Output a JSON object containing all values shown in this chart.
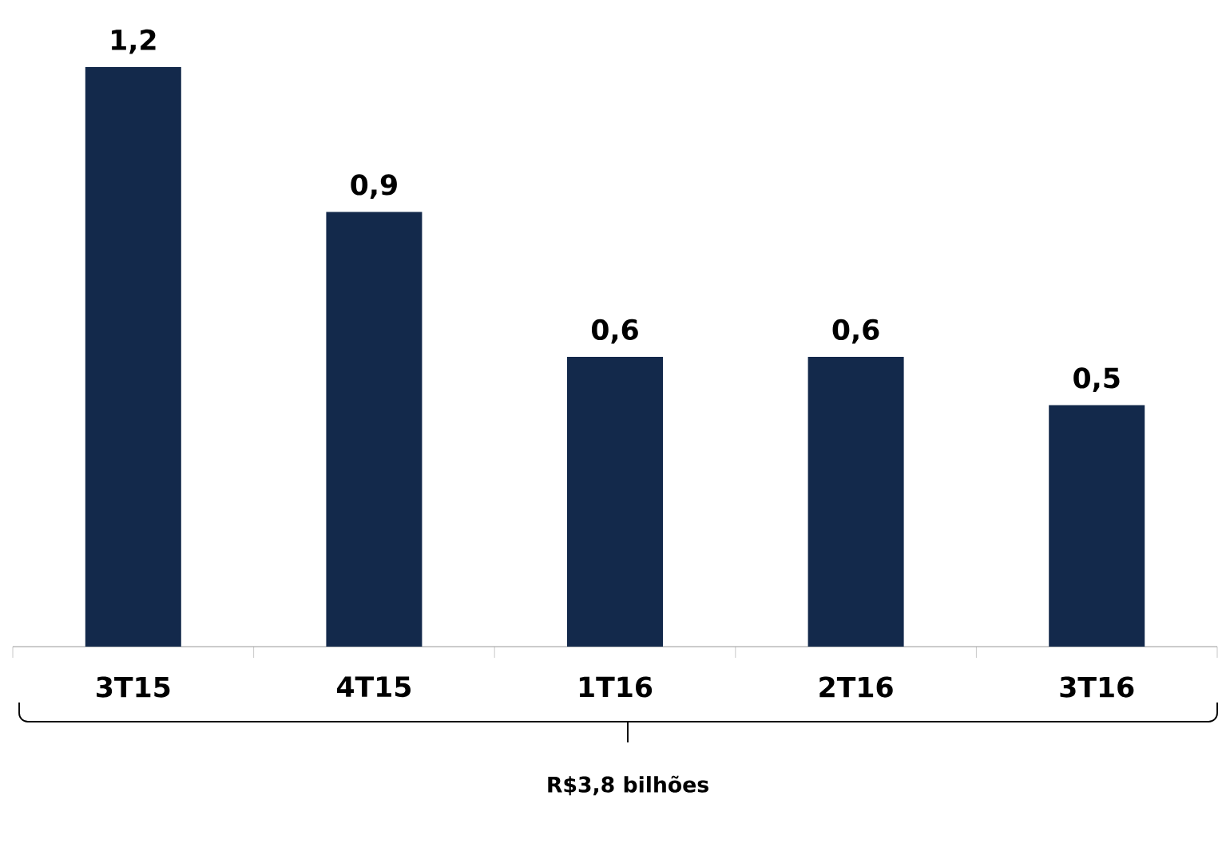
{
  "chart_data": {
    "type": "bar",
    "categories": [
      "3T15",
      "4T15",
      "1T16",
      "2T16",
      "3T16"
    ],
    "values": [
      1.2,
      0.9,
      0.6,
      0.6,
      0.5
    ],
    "value_labels": [
      "1,2",
      "0,9",
      "0,6",
      "0,6",
      "0,5"
    ],
    "color": "#13294b",
    "annotations": [
      "R$3,8 bilhões"
    ]
  }
}
